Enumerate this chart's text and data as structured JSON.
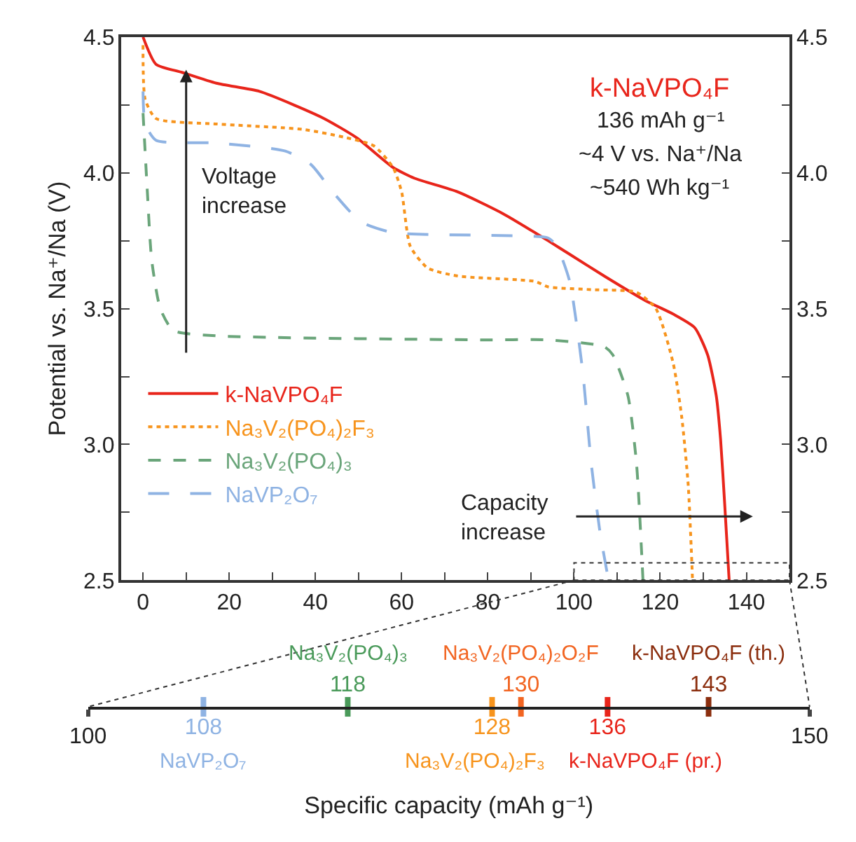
{
  "chart_data": [
    {
      "type": "line",
      "ylabel": "Potential vs. Na⁺/Na (V)",
      "xlim": [
        -5,
        150
      ],
      "xticks": [
        0,
        {
          "value": 10,
          "label": null
        },
        20,
        {
          "value": 30,
          "label": null
        },
        40,
        {
          "value": 50,
          "label": null
        },
        60,
        {
          "value": 70,
          "label": null
        },
        80,
        {
          "value": 90,
          "label": null
        },
        100,
        {
          "value": 110,
          "label": null
        },
        120,
        {
          "value": 130,
          "label": null
        },
        140
      ],
      "ylim": [
        2.5,
        4.5
      ],
      "yticks": [
        2.5,
        {
          "value": 2.75,
          "label": null
        },
        {
          "value": 3,
          "label": "3.0"
        },
        {
          "value": 3.25,
          "label": null
        },
        3.5,
        {
          "value": 3.75,
          "label": null
        },
        {
          "value": 4,
          "label": "4.0"
        },
        {
          "value": 4.25,
          "label": null
        },
        4.5
      ],
      "y2lim": [
        2.5,
        4.5
      ],
      "y2ticks": [
        2.5,
        {
          "value": 2.75,
          "label": null
        },
        {
          "value": 3,
          "label": "3.0"
        },
        {
          "value": 3.25,
          "label": null
        },
        3.5,
        {
          "value": 3.75,
          "label": null
        },
        {
          "value": 4,
          "label": "4.0"
        },
        {
          "value": 4.25,
          "label": null
        },
        4.5
      ],
      "legend": "left",
      "series": [
        {
          "name": "k-NaVPO₄F",
          "color": "#e8251b",
          "line_style": "solid",
          "x": [
            0,
            3,
            9,
            17,
            27,
            35,
            42,
            49.5,
            58,
            63,
            73,
            83.5,
            94,
            99,
            107,
            116.5,
            123,
            128,
            131,
            133,
            134,
            135,
            136
          ],
          "values": [
            4.5,
            4.4,
            4.37,
            4.33,
            4.3,
            4.25,
            4.2,
            4.13,
            4.02,
            3.98,
            3.93,
            3.85,
            3.75,
            3.7,
            3.62,
            3.53,
            3.48,
            3.43,
            3.33,
            3.18,
            3.02,
            2.77,
            2.5
          ]
        },
        {
          "name": "Na₃V₂(PO₄)₂F₃",
          "color": "#f7941d",
          "line_style": "dotted",
          "x": [
            0,
            0.5,
            3,
            17,
            37,
            47,
            53.5,
            58,
            60,
            62,
            66,
            73,
            91,
            94,
            104,
            114.5,
            119,
            123,
            125,
            126.5,
            127.5
          ],
          "values": [
            4.47,
            4.27,
            4.2,
            4.18,
            4.16,
            4.13,
            4.1,
            4.02,
            3.93,
            3.73,
            3.65,
            3.62,
            3.6,
            3.58,
            3.57,
            3.56,
            3.5,
            3.3,
            3.1,
            2.85,
            2.5
          ]
        },
        {
          "name": "Na₃V₂(PO₄)₃",
          "color": "#6aa57a",
          "line_style": "dashed",
          "x": [
            0,
            1,
            2,
            4,
            7,
            17,
            79,
            94,
            107,
            109,
            112.5,
            114.5,
            116
          ],
          "values": [
            4.22,
            3.93,
            3.68,
            3.5,
            3.42,
            3.4,
            3.385,
            3.385,
            3.36,
            3.33,
            3.18,
            2.93,
            2.5
          ]
        },
        {
          "name": "NaVP₂O₇",
          "color": "#8fb3e3",
          "line_style": "dashed",
          "x": [
            0,
            0.5,
            3,
            17,
            33,
            39,
            44,
            50.5,
            58,
            79.5,
            94,
            96,
            99,
            102,
            104,
            106,
            108
          ],
          "values": [
            4.3,
            4.18,
            4.12,
            4.11,
            4.08,
            4.03,
            3.93,
            3.82,
            3.78,
            3.77,
            3.76,
            3.73,
            3.6,
            3.27,
            2.93,
            2.68,
            2.5
          ]
        }
      ],
      "annotations": [
        "Voltage\nincrease",
        "Capacity\nincrease",
        "k-NaVPO₄F",
        "136 mAh g⁻¹",
        "~4 V vs. Na⁺/Na",
        "~540 Wh kg⁻¹"
      ]
    },
    {
      "type": "other",
      "xlabel": "Specific capacity (mAh g⁻¹)",
      "annotations": [
        "100",
        "150"
      ],
      "categories": [
        "NaVP₂O₇",
        "Na₃V₂(PO₄)₃",
        "Na₃V₂(PO₄)₂F₃",
        "Na₃V₂(PO₄)₂O₂F",
        "k-NaVPO₄F (pr.)",
        "k-NaVPO₄F (th.)"
      ],
      "values": [
        108,
        118,
        128,
        130,
        136,
        143
      ],
      "colors": [
        "#8fb3e3",
        "#4a9a5a",
        "#f7941d",
        "#f26522",
        "#e8251b",
        "#8b2e0e"
      ],
      "data_labels": true
    }
  ]
}
